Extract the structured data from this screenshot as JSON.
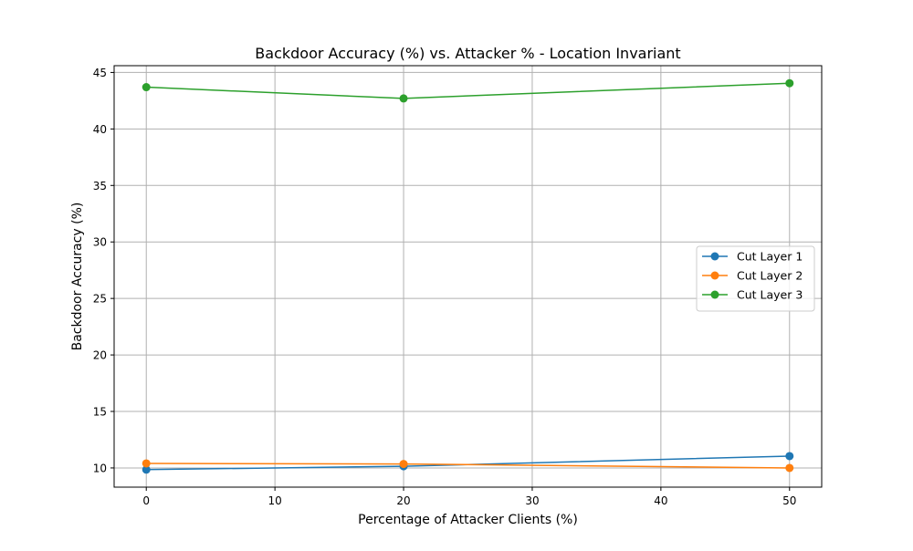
{
  "chart_data": {
    "type": "line",
    "title": "Backdoor Accuracy (%) vs. Attacker % - Location Invariant",
    "xlabel": "Percentage of Attacker Clients (%)",
    "ylabel": "Backdoor Accuracy (%)",
    "xlim": [
      -2.5,
      52.5
    ],
    "ylim": [
      8.3,
      45.6
    ],
    "xticks": [
      0,
      10,
      20,
      30,
      40,
      50
    ],
    "yticks": [
      10,
      15,
      20,
      25,
      30,
      35,
      40,
      45
    ],
    "grid": true,
    "legend_position": "center-right",
    "x": [
      0,
      20,
      50
    ],
    "series": [
      {
        "name": "Cut Layer 1",
        "color": "#1f77b4",
        "values": [
          9.85,
          10.15,
          11.05
        ]
      },
      {
        "name": "Cut Layer 2",
        "color": "#ff7f0e",
        "values": [
          10.4,
          10.35,
          10.0
        ]
      },
      {
        "name": "Cut Layer 3",
        "color": "#2ca02c",
        "values": [
          43.7,
          42.7,
          44.05
        ]
      }
    ]
  }
}
